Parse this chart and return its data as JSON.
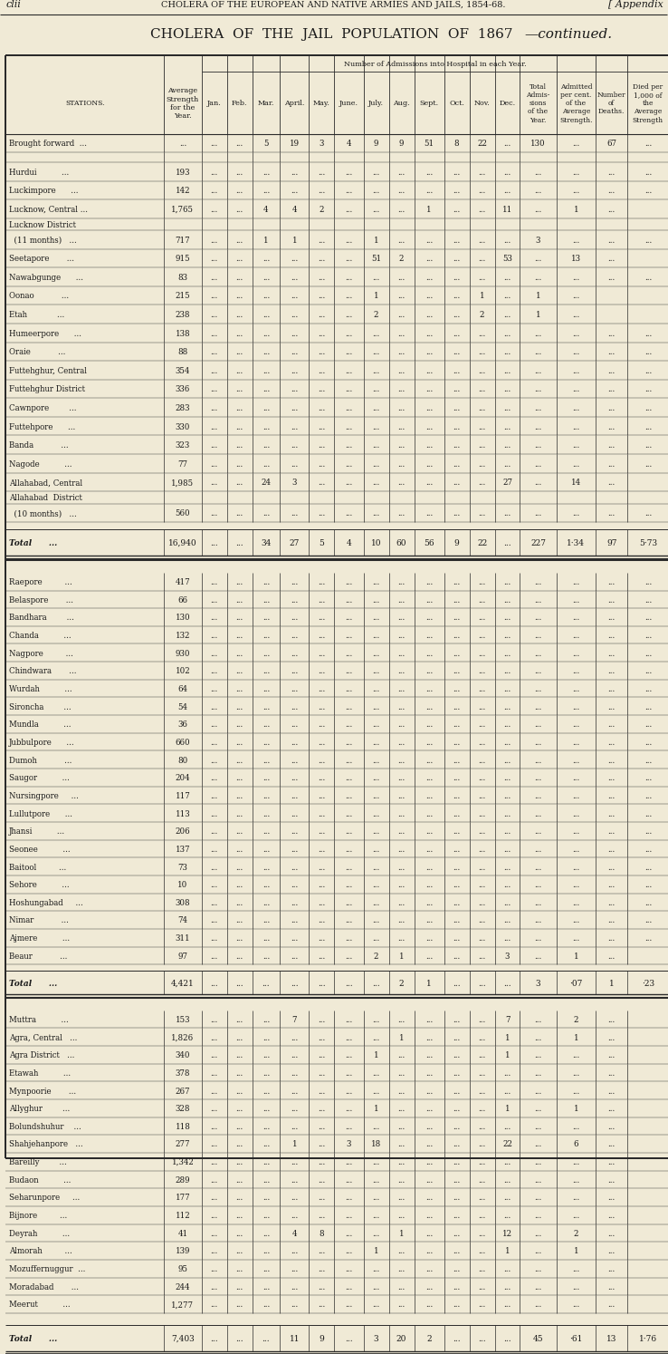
{
  "page_header_left": "clii",
  "page_header_center": "CHOLERA OF THE EUROPEAN AND NATIVE ARMÍES AND JAILS, 1854-68.",
  "page_header_right": "[ Appendix",
  "title_main": "CHOLERA  OF  THE  JAIL  POPULATION  OF  1867",
  "title_italic": "—continued.",
  "col_header_span": "Number of Admissions into Hospital in each Year.",
  "bg_color": "#f0ead6",
  "text_color": "#1a1a1a",
  "section1": [
    [
      "Brought forward  ...",
      "...",
      "...",
      "...",
      "5",
      "19",
      "3",
      "4",
      "9",
      "9",
      "51",
      "8",
      "22",
      "...",
      "130",
      "...",
      "67",
      "..."
    ],
    [
      "",
      "",
      "",
      "",
      "",
      "",
      "",
      "",
      "",
      "",
      "",
      "",
      "",
      "",
      "",
      "",
      "",
      ""
    ],
    [
      "Hurdui          ...",
      "193",
      "...",
      "...",
      "...",
      "...",
      "...",
      "...",
      "...",
      "...",
      "...",
      "...",
      "...",
      "...",
      "...",
      "...",
      "...",
      "..."
    ],
    [
      "Luckimpore      ...",
      "142",
      "...",
      "...",
      "...",
      "...",
      "...",
      "...",
      "...",
      "...",
      "...",
      "...",
      "...",
      "...",
      "...",
      "...",
      "...",
      "..."
    ],
    [
      "Lucknow, Central ...",
      "1,765",
      "...",
      "...",
      "4",
      "4",
      "2",
      "...",
      "...",
      "...",
      "1",
      "...",
      "...",
      "11",
      "...",
      "1",
      "..."
    ],
    [
      "Lucknow District",
      "",
      "",
      "",
      "",
      "",
      "",
      "",
      "",
      "",
      "",
      "",
      "",
      "",
      "",
      "",
      "",
      ""
    ],
    [
      "  (11 months)   ...",
      "717",
      "...",
      "...",
      "1",
      "1",
      "...",
      "...",
      "1",
      "...",
      "...",
      "...",
      "...",
      "...",
      "3",
      "...",
      "...",
      "..."
    ],
    [
      "Seetapore       ...",
      "915",
      "...",
      "...",
      "...",
      "...",
      "...",
      "...",
      "51",
      "2",
      "...",
      "...",
      "...",
      "53",
      "...",
      "13",
      "..."
    ],
    [
      "Nawabgunge      ...",
      "83",
      "...",
      "...",
      "...",
      "...",
      "...",
      "...",
      "...",
      "...",
      "...",
      "...",
      "...",
      "...",
      "...",
      "...",
      "...",
      "..."
    ],
    [
      "Oonao           ...",
      "215",
      "...",
      "...",
      "...",
      "...",
      "...",
      "...",
      "1",
      "...",
      "...",
      "...",
      "1",
      "...",
      "1",
      "..."
    ],
    [
      "Etah            ...",
      "238",
      "...",
      "...",
      "...",
      "...",
      "...",
      "...",
      "2",
      "...",
      "...",
      "...",
      "2",
      "...",
      "1",
      "..."
    ],
    [
      "Humeerpore      ...",
      "138",
      "...",
      "...",
      "...",
      "...",
      "...",
      "...",
      "...",
      "...",
      "...",
      "...",
      "...",
      "...",
      "...",
      "...",
      "...",
      "..."
    ],
    [
      "Oraie           ...",
      "88",
      "...",
      "...",
      "...",
      "...",
      "...",
      "...",
      "...",
      "...",
      "...",
      "...",
      "...",
      "...",
      "...",
      "...",
      "...",
      "..."
    ],
    [
      "Futtehghur, Central",
      "354",
      "...",
      "...",
      "...",
      "...",
      "...",
      "...",
      "...",
      "...",
      "...",
      "...",
      "...",
      "...",
      "...",
      "...",
      "...",
      "..."
    ],
    [
      "Futtehghur District",
      "336",
      "...",
      "...",
      "...",
      "...",
      "...",
      "...",
      "...",
      "...",
      "...",
      "...",
      "...",
      "...",
      "...",
      "...",
      "...",
      "..."
    ],
    [
      "Cawnpore        ...",
      "283",
      "...",
      "...",
      "...",
      "...",
      "...",
      "...",
      "...",
      "...",
      "...",
      "...",
      "...",
      "...",
      "...",
      "...",
      "...",
      "..."
    ],
    [
      "Futtehpore      ...",
      "330",
      "...",
      "...",
      "...",
      "...",
      "...",
      "...",
      "...",
      "...",
      "...",
      "...",
      "...",
      "...",
      "...",
      "...",
      "...",
      "..."
    ],
    [
      "Banda           ...",
      "323",
      "...",
      "...",
      "...",
      "...",
      "...",
      "...",
      "...",
      "...",
      "...",
      "...",
      "...",
      "...",
      "...",
      "...",
      "...",
      "..."
    ],
    [
      "Nagode          ...",
      "77",
      "...",
      "...",
      "...",
      "...",
      "...",
      "...",
      "...",
      "...",
      "...",
      "...",
      "...",
      "...",
      "...",
      "...",
      "...",
      "..."
    ],
    [
      "Allahabad, Central",
      "1,985",
      "...",
      "...",
      "24",
      "3",
      "...",
      "...",
      "...",
      "...",
      "...",
      "...",
      "...",
      "27",
      "...",
      "14",
      "..."
    ],
    [
      "Allahabad  District",
      "",
      "",
      "",
      "",
      "",
      "",
      "",
      "",
      "",
      "",
      "",
      "",
      "",
      "",
      "",
      "",
      ""
    ],
    [
      "  (10 months)   ...",
      "560",
      "...",
      "...",
      "...",
      "...",
      "...",
      "...",
      "...",
      "...",
      "...",
      "...",
      "...",
      "...",
      "...",
      "...",
      "...",
      "..."
    ]
  ],
  "total1": [
    "Total      ...",
    "16,940",
    "...",
    "...",
    "34",
    "27",
    "5",
    "4",
    "10",
    "60",
    "56",
    "9",
    "22",
    "...",
    "227",
    "1·34",
    "97",
    "5·73"
  ],
  "section2": [
    [
      "Raepore         ...",
      "417",
      "...",
      "...",
      "...",
      "...",
      "...",
      "...",
      "...",
      "...",
      "...",
      "...",
      "...",
      "...",
      "...",
      "...",
      "...",
      "..."
    ],
    [
      "Belaspore       ...",
      "66",
      "...",
      "...",
      "...",
      "...",
      "...",
      "...",
      "...",
      "...",
      "...",
      "...",
      "...",
      "...",
      "...",
      "...",
      "...",
      "..."
    ],
    [
      "Bandhara        ...",
      "130",
      "...",
      "...",
      "...",
      "...",
      "...",
      "...",
      "...",
      "...",
      "...",
      "...",
      "...",
      "...",
      "...",
      "...",
      "...",
      "..."
    ],
    [
      "Chanda          ...",
      "132",
      "...",
      "...",
      "...",
      "...",
      "...",
      "...",
      "...",
      "...",
      "...",
      "...",
      "...",
      "...",
      "...",
      "...",
      "...",
      "..."
    ],
    [
      "Nagpore         ...",
      "930",
      "...",
      "...",
      "...",
      "...",
      "...",
      "...",
      "...",
      "...",
      "...",
      "...",
      "...",
      "...",
      "...",
      "...",
      "...",
      "..."
    ],
    [
      "Chindwara       ...",
      "102",
      "...",
      "...",
      "...",
      "...",
      "...",
      "...",
      "...",
      "...",
      "...",
      "...",
      "...",
      "...",
      "...",
      "...",
      "...",
      "..."
    ],
    [
      "Wurdah          ...",
      "64",
      "...",
      "...",
      "...",
      "...",
      "...",
      "...",
      "...",
      "...",
      "...",
      "...",
      "...",
      "...",
      "...",
      "...",
      "...",
      "..."
    ],
    [
      "Sironcha        ...",
      "54",
      "...",
      "...",
      "...",
      "...",
      "...",
      "...",
      "...",
      "...",
      "...",
      "...",
      "...",
      "...",
      "...",
      "...",
      "...",
      "..."
    ],
    [
      "Mundla          ...",
      "36",
      "...",
      "...",
      "...",
      "...",
      "...",
      "...",
      "...",
      "...",
      "...",
      "...",
      "...",
      "...",
      "...",
      "...",
      "...",
      "..."
    ],
    [
      "Jubbulpore      ...",
      "660",
      "...",
      "...",
      "...",
      "...",
      "...",
      "...",
      "...",
      "...",
      "...",
      "...",
      "...",
      "...",
      "...",
      "...",
      "...",
      "..."
    ],
    [
      "Dumoh           ...",
      "80",
      "...",
      "...",
      "...",
      "...",
      "...",
      "...",
      "...",
      "...",
      "...",
      "...",
      "...",
      "...",
      "...",
      "...",
      "...",
      "..."
    ],
    [
      "Saugor          ...",
      "204",
      "...",
      "...",
      "...",
      "...",
      "...",
      "...",
      "...",
      "...",
      "...",
      "...",
      "...",
      "...",
      "...",
      "...",
      "...",
      "..."
    ],
    [
      "Nursingpore     ...",
      "117",
      "...",
      "...",
      "...",
      "...",
      "...",
      "...",
      "...",
      "...",
      "...",
      "...",
      "...",
      "...",
      "...",
      "...",
      "...",
      "..."
    ],
    [
      "Lullutpore      ...",
      "113",
      "...",
      "...",
      "...",
      "...",
      "...",
      "...",
      "...",
      "...",
      "...",
      "...",
      "...",
      "...",
      "...",
      "...",
      "...",
      "..."
    ],
    [
      "Jhansi          ...",
      "206",
      "...",
      "...",
      "...",
      "...",
      "...",
      "...",
      "...",
      "...",
      "...",
      "...",
      "...",
      "...",
      "...",
      "...",
      "...",
      "..."
    ],
    [
      "Seonee          ...",
      "137",
      "...",
      "...",
      "...",
      "...",
      "...",
      "...",
      "...",
      "...",
      "...",
      "...",
      "...",
      "...",
      "...",
      "...",
      "...",
      "..."
    ],
    [
      "Baitool         ...",
      "73",
      "...",
      "...",
      "...",
      "...",
      "...",
      "...",
      "...",
      "...",
      "...",
      "...",
      "...",
      "...",
      "...",
      "...",
      "...",
      "..."
    ],
    [
      "Sehore          ...",
      "10",
      "...",
      "...",
      "...",
      "...",
      "...",
      "...",
      "...",
      "...",
      "...",
      "...",
      "...",
      "...",
      "...",
      "...",
      "...",
      "..."
    ],
    [
      "Hoshungabad     ...",
      "308",
      "...",
      "...",
      "...",
      "...",
      "...",
      "...",
      "...",
      "...",
      "...",
      "...",
      "...",
      "...",
      "...",
      "...",
      "...",
      "..."
    ],
    [
      "Nimar           ...",
      "74",
      "...",
      "...",
      "...",
      "...",
      "...",
      "...",
      "...",
      "...",
      "...",
      "...",
      "...",
      "...",
      "...",
      "...",
      "...",
      "..."
    ],
    [
      "Ajmere          ...",
      "311",
      "...",
      "...",
      "...",
      "...",
      "...",
      "...",
      "...",
      "...",
      "...",
      "...",
      "...",
      "...",
      "...",
      "...",
      "...",
      "..."
    ],
    [
      "Beaur           ...",
      "97",
      "...",
      "...",
      "...",
      "...",
      "...",
      "...",
      "2",
      "1",
      "...",
      "...",
      "...",
      "3",
      "...",
      "1",
      "..."
    ]
  ],
  "total2": [
    "Total      ...",
    "4,421",
    "...",
    "...",
    "...",
    "...",
    "...",
    "...",
    "...",
    "2",
    "1",
    "...",
    "...",
    "...",
    "3",
    "·07",
    "1",
    "·23"
  ],
  "section3": [
    [
      "Muttra          ...",
      "153",
      "...",
      "...",
      "...",
      "7",
      "...",
      "...",
      "...",
      "...",
      "...",
      "...",
      "...",
      "7",
      "...",
      "2",
      "..."
    ],
    [
      "Agra, Central   ...",
      "1,826",
      "...",
      "...",
      "...",
      "...",
      "...",
      "...",
      "...",
      "1",
      "...",
      "...",
      "...",
      "1",
      "...",
      "1",
      "..."
    ],
    [
      "Agra District   ...",
      "340",
      "...",
      "...",
      "...",
      "...",
      "...",
      "...",
      "1",
      "...",
      "...",
      "...",
      "...",
      "1",
      "...",
      "...",
      "..."
    ],
    [
      "Etawah          ...",
      "378",
      "...",
      "...",
      "...",
      "...",
      "...",
      "...",
      "...",
      "...",
      "...",
      "...",
      "...",
      "...",
      "...",
      "...",
      "..."
    ],
    [
      "Mynpoorie       ...",
      "267",
      "...",
      "...",
      "...",
      "...",
      "...",
      "...",
      "...",
      "...",
      "...",
      "...",
      "...",
      "...",
      "...",
      "...",
      "..."
    ],
    [
      "Allyghur        ...",
      "328",
      "...",
      "...",
      "...",
      "...",
      "...",
      "...",
      "1",
      "...",
      "...",
      "...",
      "...",
      "1",
      "...",
      "1",
      "..."
    ],
    [
      "Bolundshuhur    ...",
      "118",
      "...",
      "...",
      "...",
      "...",
      "...",
      "...",
      "...",
      "...",
      "...",
      "...",
      "...",
      "...",
      "...",
      "...",
      "..."
    ],
    [
      "Shahjehanpore   ...",
      "277",
      "...",
      "...",
      "...",
      "1",
      "...",
      "3",
      "18",
      "...",
      "...",
      "...",
      "...",
      "22",
      "...",
      "6",
      "..."
    ],
    [
      "Bareilly        ...",
      "1,342",
      "...",
      "...",
      "...",
      "...",
      "...",
      "...",
      "...",
      "...",
      "...",
      "...",
      "...",
      "...",
      "...",
      "...",
      "..."
    ],
    [
      "Budaon          ...",
      "289",
      "...",
      "...",
      "...",
      "...",
      "...",
      "...",
      "...",
      "...",
      "...",
      "...",
      "...",
      "...",
      "...",
      "...",
      "..."
    ],
    [
      "Seharunpore     ...",
      "177",
      "...",
      "...",
      "...",
      "...",
      "...",
      "...",
      "...",
      "...",
      "...",
      "...",
      "...",
      "...",
      "...",
      "...",
      "..."
    ],
    [
      "Bijnore         ...",
      "112",
      "...",
      "...",
      "...",
      "...",
      "...",
      "...",
      "...",
      "...",
      "...",
      "...",
      "...",
      "...",
      "...",
      "...",
      "..."
    ],
    [
      "Deyrah          ...",
      "41",
      "...",
      "...",
      "...",
      "4",
      "8",
      "...",
      "...",
      "1",
      "...",
      "...",
      "...",
      "12",
      "...",
      "2",
      "..."
    ],
    [
      "Almorah         ...",
      "139",
      "...",
      "...",
      "...",
      "...",
      "...",
      "...",
      "1",
      "...",
      "...",
      "...",
      "...",
      "1",
      "...",
      "1",
      "..."
    ],
    [
      "Mozuffernuggur  ...",
      "95",
      "...",
      "...",
      "...",
      "...",
      "...",
      "...",
      "...",
      "...",
      "...",
      "...",
      "...",
      "...",
      "...",
      "...",
      "..."
    ],
    [
      "Moradabad       ...",
      "244",
      "...",
      "...",
      "...",
      "...",
      "...",
      "...",
      "...",
      "...",
      "...",
      "...",
      "...",
      "...",
      "...",
      "...",
      "..."
    ],
    [
      "Meerut          ...",
      "1,277",
      "...",
      "...",
      "...",
      "...",
      "...",
      "...",
      "...",
      "...",
      "...",
      "...",
      "...",
      "...",
      "...",
      "...",
      "..."
    ]
  ],
  "total3": [
    "Total      ...",
    "7,403",
    "...",
    "...",
    "...",
    "11",
    "9",
    "...",
    "3",
    "20",
    "2",
    "...",
    "...",
    "...",
    "45",
    "·61",
    "13",
    "1·76"
  ]
}
